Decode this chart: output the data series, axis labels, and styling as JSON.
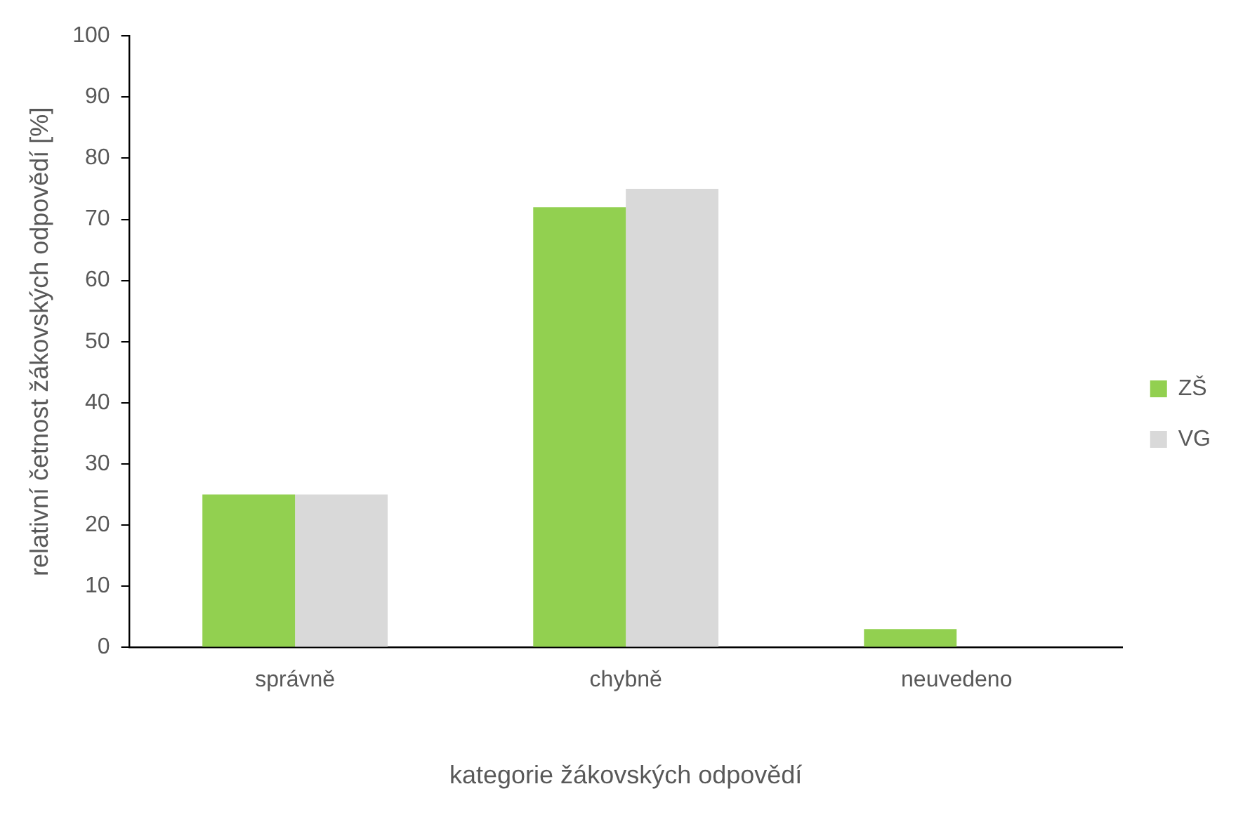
{
  "chart_data": {
    "type": "bar",
    "xlabel": "kategorie žákovských odpovědí",
    "ylabel": "relativní četnost žákovských odpovědí [%]",
    "categories": [
      "správně",
      "chybně",
      "neuvedeno"
    ],
    "series": [
      {
        "name": "ZŠ",
        "color": "#92d050",
        "values": [
          25,
          72,
          3
        ]
      },
      {
        "name": "VG",
        "color": "#d9d9d9",
        "values": [
          25,
          75,
          0
        ]
      }
    ],
    "ylim": [
      0,
      100
    ],
    "yticks": [
      0,
      10,
      20,
      30,
      40,
      50,
      60,
      70,
      80,
      90,
      100
    ],
    "grid": false,
    "legend": "right"
  }
}
